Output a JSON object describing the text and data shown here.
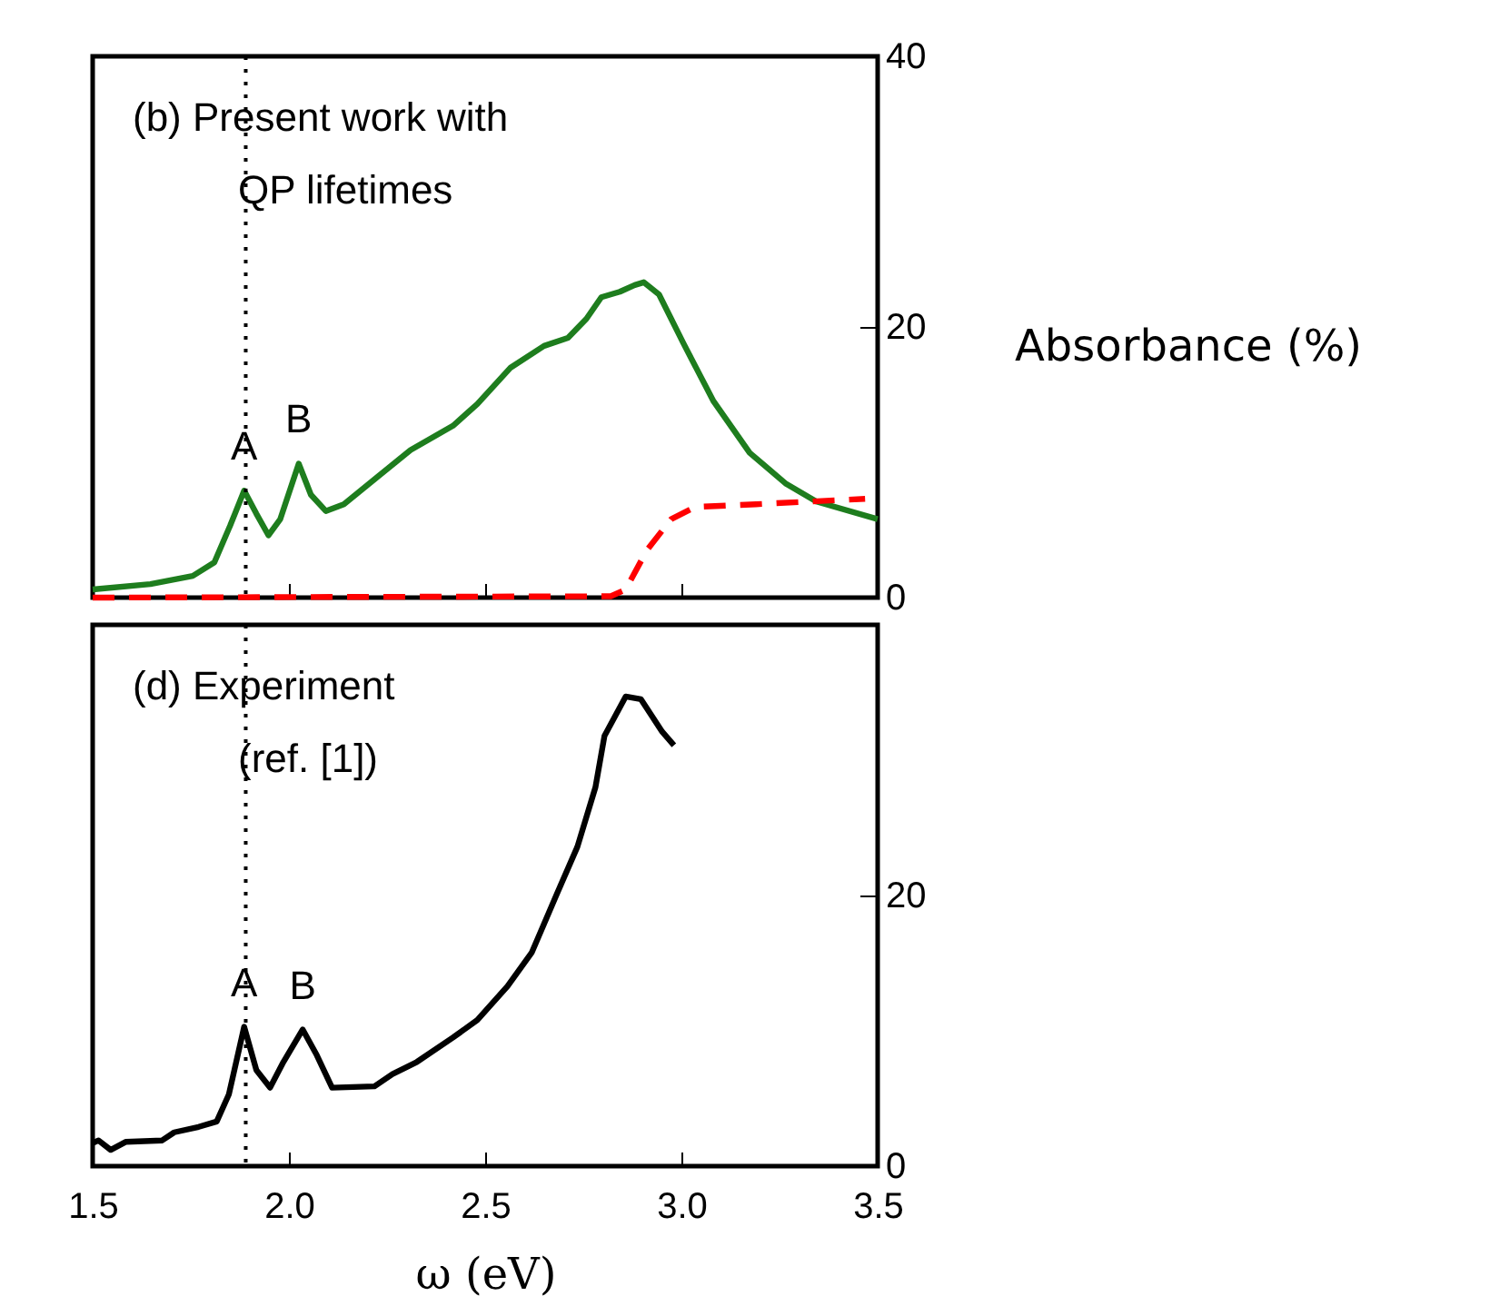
{
  "chart_data": [
    {
      "type": "line",
      "ylabel": "Absorbance (%)",
      "xlim": [
        1.5,
        3.5
      ],
      "xticks": [
        1.5,
        2,
        2.5,
        3,
        3.5
      ],
      "ylim": [
        0,
        40
      ],
      "yticks": [
        0,
        20,
        40
      ],
      "tick_labels": "y",
      "annotations": [
        "(b) Present work with\nQP lifetimes",
        {
          "text": "A",
          "x": 1.886,
          "y": 7.9
        },
        {
          "text": "B",
          "x": 2.025,
          "y": 9.9
        }
      ],
      "ref_lines": [
        {
          "axis": "x",
          "value": 1.89,
          "line_style": "dotted",
          "color": "#000000"
        }
      ],
      "series": [
        {
          "color": "#1e7d1e",
          "line_style": "solid",
          "x": [
            1.5,
            1.647,
            1.755,
            1.81,
            1.85,
            1.886,
            1.917,
            1.948,
            1.978,
            2.025,
            2.056,
            2.094,
            2.14,
            2.233,
            2.31,
            2.418,
            2.48,
            2.565,
            2.65,
            2.711,
            2.758,
            2.796,
            2.843,
            2.881,
            2.904,
            2.943,
            3.005,
            3.082,
            3.174,
            3.267,
            3.344,
            3.5
          ],
          "values": [
            0.6,
            1.0,
            1.6,
            2.6,
            5.3,
            7.9,
            6.2,
            4.6,
            5.8,
            9.9,
            7.6,
            6.4,
            6.9,
            9.1,
            10.9,
            12.7,
            14.3,
            17.0,
            18.6,
            19.2,
            20.6,
            22.2,
            22.6,
            23.1,
            23.3,
            22.4,
            18.8,
            14.5,
            10.7,
            8.4,
            7.1,
            5.8
          ]
        },
        {
          "color": "#ff0000",
          "line_style": "dashed",
          "x": [
            1.5,
            2.82,
            2.858,
            2.912,
            2.974,
            3.036,
            3.19,
            3.468
          ],
          "values": [
            0,
            0.1,
            0.6,
            3.5,
            5.8,
            6.7,
            6.9,
            7.3
          ]
        }
      ]
    },
    {
      "type": "line",
      "xlabel": "ω (eV)",
      "xlim": [
        1.5,
        3.5
      ],
      "xticks": [
        1.5,
        {
          "value": 2,
          "label": "2.0"
        },
        2.5,
        {
          "value": 3,
          "label": "3.0"
        },
        3.5
      ],
      "ylim": [
        0,
        40
      ],
      "yticks": [
        0,
        20
      ],
      "annotations": [
        "(d) Experiment\n(ref. [1])",
        {
          "text": "A",
          "x": 1.886,
          "y": 10.3
        },
        {
          "text": "B",
          "x": 2.035,
          "y": 10.1
        }
      ],
      "ref_lines": [
        {
          "axis": "x",
          "value": 1.89,
          "line_style": "dotted",
          "color": "#000000"
        }
      ],
      "series": [
        {
          "color": "#000000",
          "line_style": "solid",
          "x": [
            1.5,
            1.515,
            1.546,
            1.585,
            1.677,
            1.708,
            1.77,
            1.816,
            1.847,
            1.886,
            1.917,
            1.952,
            1.986,
            2.035,
            2.071,
            2.11,
            2.218,
            2.264,
            2.326,
            2.418,
            2.48,
            2.557,
            2.619,
            2.681,
            2.735,
            2.781,
            2.804,
            2.858,
            2.897,
            2.951,
            2.981
          ],
          "values": [
            1.7,
            1.9,
            1.2,
            1.8,
            1.9,
            2.5,
            2.9,
            3.3,
            5.3,
            10.3,
            7.1,
            5.8,
            7.7,
            10.1,
            8.2,
            5.8,
            5.9,
            6.8,
            7.7,
            9.5,
            10.8,
            13.3,
            15.8,
            20,
            23.6,
            28,
            31.8,
            34.7,
            34.5,
            32.1,
            31.1
          ]
        }
      ]
    }
  ]
}
